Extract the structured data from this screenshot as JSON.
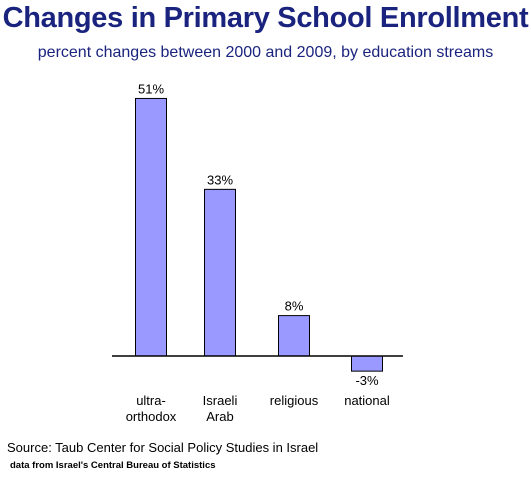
{
  "chart_data": {
    "type": "bar",
    "title": "Changes in Primary School Enrollment",
    "subtitle": "percent changes between 2000 and 2009, by education streams",
    "categories": [
      [
        "ultra-",
        "orthodox"
      ],
      [
        "Israeli",
        "Arab"
      ],
      [
        "religious"
      ],
      [
        "national"
      ]
    ],
    "values": [
      51,
      33,
      8,
      -3
    ],
    "data_labels": [
      "51%",
      "33%",
      "8%",
      "-3%"
    ],
    "xlabel": "",
    "ylabel": "",
    "ylim": [
      -5,
      55
    ],
    "grid": false,
    "colors": {
      "bar": "#9999ff",
      "bar_stroke": "#000000",
      "title": "#1a237e"
    }
  },
  "footer": {
    "source": "Source: Taub Center for Social Policy Studies in Israel",
    "note": "data from Israel's Central Bureau of Statistics"
  }
}
